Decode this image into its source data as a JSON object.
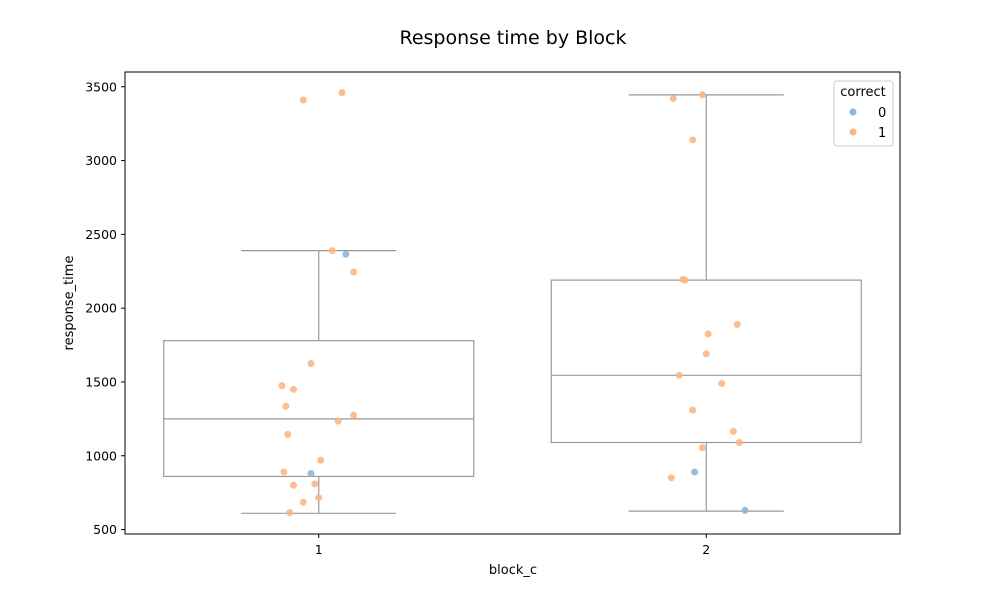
{
  "chart_data": {
    "type": "box",
    "title": "Response time by Block",
    "xlabel": "block_c",
    "ylabel": "response_time",
    "categories": [
      "1",
      "2"
    ],
    "ylim": [
      470,
      3600
    ],
    "yticks": [
      500,
      1000,
      1500,
      2000,
      2500,
      3000,
      3500
    ],
    "box_color": "#999999",
    "boxes": [
      {
        "category": "1",
        "whisker_low": 610,
        "q1": 860,
        "median": 1250,
        "q3": 1780,
        "whisker_high": 2390
      },
      {
        "category": "2",
        "whisker_low": 625,
        "q1": 1090,
        "median": 1545,
        "q3": 2190,
        "whisker_high": 3445
      }
    ],
    "legend": {
      "title": "correct",
      "position": "top-right",
      "entries": [
        {
          "label": "0",
          "color": "#8db6d8"
        },
        {
          "label": "1",
          "color": "#f9b784"
        }
      ]
    },
    "series": [
      {
        "name": "0",
        "color": "#8db6d8",
        "points": [
          {
            "x": "1",
            "jitter": 0.07,
            "y": 2365
          },
          {
            "x": "1",
            "jitter": -0.02,
            "y": 880
          },
          {
            "x": "2",
            "jitter": -0.03,
            "y": 890
          },
          {
            "x": "2",
            "jitter": 0.1,
            "y": 630
          }
        ]
      },
      {
        "name": "1",
        "color": "#f9b784",
        "points": [
          {
            "x": "1",
            "jitter": -0.04,
            "y": 3410
          },
          {
            "x": "1",
            "jitter": 0.06,
            "y": 3460
          },
          {
            "x": "1",
            "jitter": 0.035,
            "y": 2390
          },
          {
            "x": "1",
            "jitter": 0.09,
            "y": 2245
          },
          {
            "x": "1",
            "jitter": -0.02,
            "y": 1625
          },
          {
            "x": "1",
            "jitter": -0.095,
            "y": 1475
          },
          {
            "x": "1",
            "jitter": -0.065,
            "y": 1450
          },
          {
            "x": "1",
            "jitter": -0.085,
            "y": 1335
          },
          {
            "x": "1",
            "jitter": 0.09,
            "y": 1275
          },
          {
            "x": "1",
            "jitter": 0.05,
            "y": 1235
          },
          {
            "x": "1",
            "jitter": -0.08,
            "y": 1145
          },
          {
            "x": "1",
            "jitter": 0.005,
            "y": 970
          },
          {
            "x": "1",
            "jitter": -0.09,
            "y": 890
          },
          {
            "x": "1",
            "jitter": -0.065,
            "y": 800
          },
          {
            "x": "1",
            "jitter": -0.01,
            "y": 810
          },
          {
            "x": "1",
            "jitter": 0.0,
            "y": 715
          },
          {
            "x": "1",
            "jitter": -0.04,
            "y": 685
          },
          {
            "x": "1",
            "jitter": -0.075,
            "y": 615
          },
          {
            "x": "2",
            "jitter": -0.085,
            "y": 3420
          },
          {
            "x": "2",
            "jitter": -0.01,
            "y": 3445
          },
          {
            "x": "2",
            "jitter": -0.035,
            "y": 3140
          },
          {
            "x": "2",
            "jitter": -0.06,
            "y": 2195
          },
          {
            "x": "2",
            "jitter": -0.055,
            "y": 2190
          },
          {
            "x": "2",
            "jitter": 0.08,
            "y": 1890
          },
          {
            "x": "2",
            "jitter": 0.005,
            "y": 1825
          },
          {
            "x": "2",
            "jitter": 0.0,
            "y": 1690
          },
          {
            "x": "2",
            "jitter": -0.07,
            "y": 1545
          },
          {
            "x": "2",
            "jitter": 0.04,
            "y": 1490
          },
          {
            "x": "2",
            "jitter": -0.035,
            "y": 1310
          },
          {
            "x": "2",
            "jitter": 0.07,
            "y": 1165
          },
          {
            "x": "2",
            "jitter": 0.085,
            "y": 1090
          },
          {
            "x": "2",
            "jitter": -0.01,
            "y": 1055
          },
          {
            "x": "2",
            "jitter": -0.09,
            "y": 850
          }
        ]
      }
    ]
  }
}
